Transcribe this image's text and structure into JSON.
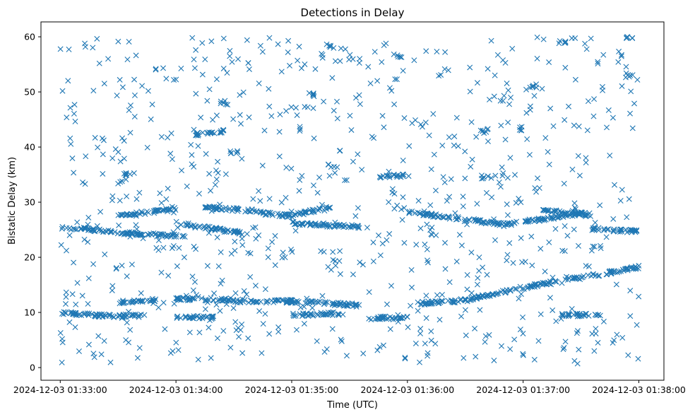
{
  "chart_data": {
    "type": "scatter",
    "title": "Detections in Delay",
    "xlabel": "Time (UTC)",
    "ylabel": "Bistatic Delay (km)",
    "x_type": "datetime",
    "xlim": [
      "2024-12-03 01:32:50",
      "2024-12-03 01:38:13"
    ],
    "ylim": [
      -2.3,
      62.7
    ],
    "x_ticks": [
      "2024-12-03 01:33:00",
      "2024-12-03 01:34:00",
      "2024-12-03 01:35:00",
      "2024-12-03 01:36:00",
      "2024-12-03 01:37:00",
      "2024-12-03 01:38:00"
    ],
    "y_ticks": [
      0,
      10,
      20,
      30,
      40,
      50,
      60
    ],
    "grid": false,
    "marker": "x",
    "color": "#1f77b4",
    "series": [
      {
        "structure": "description-free point groups",
        "tracks": [
          {
            "x_start": "2024-12-03 01:33:00",
            "x_end": "2024-12-03 01:33:40",
            "y_start": 25.5,
            "y_end": 24.2
          },
          {
            "x_start": "2024-12-03 01:33:40",
            "x_end": "2024-12-03 01:34:05",
            "y_start": 24.2,
            "y_end": 23.8
          },
          {
            "x_start": "2024-12-03 01:33:30",
            "x_end": "2024-12-03 01:34:00",
            "y_start": 27.5,
            "y_end": 28.8
          },
          {
            "x_start": "2024-12-03 01:34:10",
            "x_end": "2024-12-03 01:34:25",
            "y_start": 42.3,
            "y_end": 42.9
          },
          {
            "x_start": "2024-12-03 01:34:15",
            "x_end": "2024-12-03 01:34:40",
            "y_start": 29.0,
            "y_end": 28.5
          },
          {
            "x_start": "2024-12-03 01:34:40",
            "x_end": "2024-12-03 01:35:00",
            "y_start": 28.2,
            "y_end": 27.5
          },
          {
            "x_start": "2024-12-03 01:34:00",
            "x_end": "2024-12-03 01:34:35",
            "y_start": 26.3,
            "y_end": 24.3
          },
          {
            "x_start": "2024-12-03 01:35:00",
            "x_end": "2024-12-03 01:35:20",
            "y_start": 27.5,
            "y_end": 29.2
          },
          {
            "x_start": "2024-12-03 01:35:00",
            "x_end": "2024-12-03 01:35:35",
            "y_start": 26.2,
            "y_end": 25.5
          },
          {
            "x_start": "2024-12-03 01:35:45",
            "x_end": "2024-12-03 01:35:58",
            "y_start": 34.7,
            "y_end": 34.8
          },
          {
            "x_start": "2024-12-03 01:36:00",
            "x_end": "2024-12-03 01:36:50",
            "y_start": 28.2,
            "y_end": 26.0
          },
          {
            "x_start": "2024-12-03 01:36:50",
            "x_end": "2024-12-03 01:37:35",
            "y_start": 25.9,
            "y_end": 28.2
          },
          {
            "x_start": "2024-12-03 01:37:10",
            "x_end": "2024-12-03 01:37:35",
            "y_start": 28.5,
            "y_end": 27.6
          },
          {
            "x_start": "2024-12-03 01:37:35",
            "x_end": "2024-12-03 01:38:00",
            "y_start": 25.2,
            "y_end": 24.6
          },
          {
            "x_start": "2024-12-03 01:33:00",
            "x_end": "2024-12-03 01:33:20",
            "y_start": 10.0,
            "y_end": 9.5
          },
          {
            "x_start": "2024-12-03 01:33:20",
            "x_end": "2024-12-03 01:33:45",
            "y_start": 9.4,
            "y_end": 9.4
          },
          {
            "x_start": "2024-12-03 01:33:30",
            "x_end": "2024-12-03 01:33:50",
            "y_start": 11.8,
            "y_end": 12.3
          },
          {
            "x_start": "2024-12-03 01:34:00",
            "x_end": "2024-12-03 01:34:20",
            "y_start": 9.1,
            "y_end": 9.1
          },
          {
            "x_start": "2024-12-03 01:34:00",
            "x_end": "2024-12-03 01:34:30",
            "y_start": 12.5,
            "y_end": 12.3
          },
          {
            "x_start": "2024-12-03 01:34:30",
            "x_end": "2024-12-03 01:35:00",
            "y_start": 12.1,
            "y_end": 12.0
          },
          {
            "x_start": "2024-12-03 01:35:00",
            "x_end": "2024-12-03 01:35:35",
            "y_start": 12.0,
            "y_end": 11.3
          },
          {
            "x_start": "2024-12-03 01:35:00",
            "x_end": "2024-12-03 01:35:25",
            "y_start": 9.5,
            "y_end": 9.8
          },
          {
            "x_start": "2024-12-03 01:35:40",
            "x_end": "2024-12-03 01:36:00",
            "y_start": 9.0,
            "y_end": 9.0
          },
          {
            "x_start": "2024-12-03 01:36:05",
            "x_end": "2024-12-03 01:36:30",
            "y_start": 11.6,
            "y_end": 12.2
          },
          {
            "x_start": "2024-12-03 01:36:30",
            "x_end": "2024-12-03 01:37:00",
            "y_start": 12.2,
            "y_end": 14.5
          },
          {
            "x_start": "2024-12-03 01:37:00",
            "x_end": "2024-12-03 01:37:30",
            "y_start": 14.5,
            "y_end": 16.3
          },
          {
            "x_start": "2024-12-03 01:37:30",
            "x_end": "2024-12-03 01:38:00",
            "y_start": 16.3,
            "y_end": 18.2
          },
          {
            "x_start": "2024-12-03 01:37:20",
            "x_end": "2024-12-03 01:37:40",
            "y_start": 9.5,
            "y_end": 9.6
          }
        ],
        "clusters": [
          {
            "x": "2024-12-03 01:35:20",
            "y": 58.3
          },
          {
            "x": "2024-12-03 01:35:10",
            "y": 49.4
          },
          {
            "x": "2024-12-03 01:35:55",
            "y": 56.5
          },
          {
            "x": "2024-12-03 01:33:35",
            "y": 35.0
          },
          {
            "x": "2024-12-03 01:36:40",
            "y": 43.0
          },
          {
            "x": "2024-12-03 01:36:40",
            "y": 34.5
          },
          {
            "x": "2024-12-03 01:37:20",
            "y": 59.0
          },
          {
            "x": "2024-12-03 01:37:55",
            "y": 59.8
          },
          {
            "x": "2024-12-03 01:37:55",
            "y": 53.0
          },
          {
            "x": "2024-12-03 01:37:00",
            "y": 43.3
          },
          {
            "x": "2024-12-03 01:34:25",
            "y": 48.0
          },
          {
            "x": "2024-12-03 01:34:30",
            "y": 39.0
          },
          {
            "x": "2024-12-03 01:37:05",
            "y": 51.0
          }
        ]
      }
    ]
  }
}
